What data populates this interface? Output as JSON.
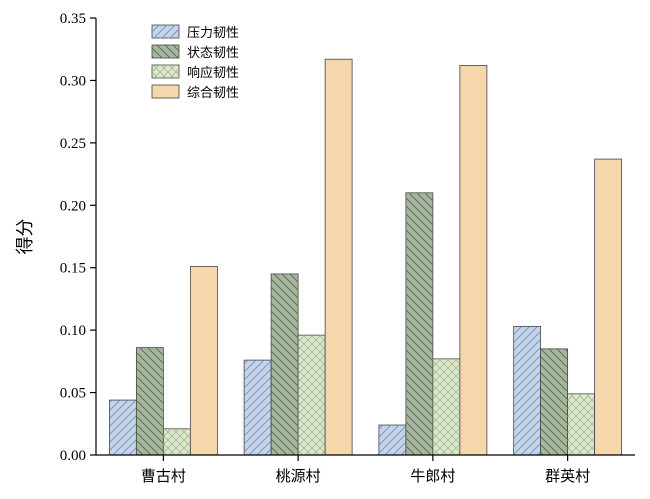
{
  "chart_data": {
    "type": "bar",
    "categories": [
      "曹古村",
      "桃源村",
      "牛郎村",
      "群英村"
    ],
    "series": [
      {
        "name": "压力韧性",
        "values": [
          0.044,
          0.076,
          0.024,
          0.103
        ],
        "color": "#c5d4e8",
        "hatch": "diagonal-up"
      },
      {
        "name": "状态韧性",
        "values": [
          0.086,
          0.145,
          0.21,
          0.085
        ],
        "color": "#a7b79f",
        "hatch": "diagonal-down"
      },
      {
        "name": "响应韧性",
        "values": [
          0.021,
          0.096,
          0.077,
          0.049
        ],
        "color": "#dce8cc",
        "hatch": "cross"
      },
      {
        "name": "综合韧性",
        "values": [
          0.151,
          0.317,
          0.312,
          0.237
        ],
        "color": "#f5d7ab",
        "hatch": "none"
      }
    ],
    "title": "",
    "xlabel": "",
    "ylabel": "得分",
    "ylim": [
      0,
      0.35
    ],
    "yticks": [
      "0.00",
      "0.05",
      "0.10",
      "0.15",
      "0.20",
      "0.25",
      "0.30",
      "0.35"
    ],
    "legend_position": "top-left",
    "grid": false
  }
}
